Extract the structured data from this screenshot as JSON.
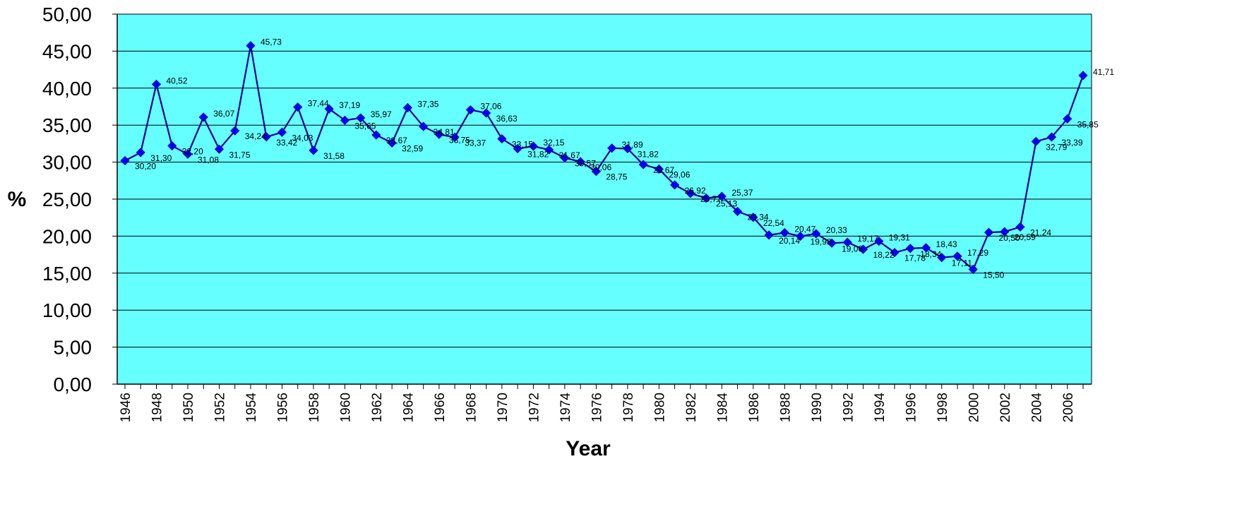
{
  "colors": {
    "plot_background": "#66ffff",
    "series_line": "#000099",
    "marker": "#0000ff",
    "gridline": "#000000"
  },
  "chart_data": {
    "type": "line",
    "title": "",
    "xlabel": "Year",
    "ylabel": "%",
    "ylim": [
      0,
      50
    ],
    "ytick_labels": [
      "0,00",
      "5,00",
      "10,00",
      "15,00",
      "20,00",
      "25,00",
      "30,00",
      "35,00",
      "40,00",
      "45,00",
      "50,00"
    ],
    "xtick_labels": [
      "1946",
      "1948",
      "1950",
      "1952",
      "1954",
      "1956",
      "1958",
      "1960",
      "1962",
      "1964",
      "1966",
      "1968",
      "1970",
      "1972",
      "1974",
      "1976",
      "1978",
      "1980",
      "1982",
      "1984",
      "1986",
      "1988",
      "1990",
      "1992",
      "1994",
      "1996",
      "1998",
      "2000",
      "2002",
      "2004",
      "2006"
    ],
    "grid": true,
    "marker": "diamond",
    "x": [
      1946,
      1947,
      1948,
      1949,
      1950,
      1951,
      1952,
      1953,
      1954,
      1955,
      1956,
      1957,
      1958,
      1959,
      1960,
      1961,
      1962,
      1963,
      1964,
      1965,
      1966,
      1967,
      1968,
      1969,
      1970,
      1971,
      1972,
      1973,
      1974,
      1975,
      1976,
      1977,
      1978,
      1979,
      1980,
      1981,
      1982,
      1983,
      1984,
      1985,
      1986,
      1987,
      1988,
      1989,
      1990,
      1991,
      1992,
      1993,
      1994,
      1995,
      1996,
      1997,
      1998,
      1999,
      2000,
      2001,
      2002,
      2003,
      2004,
      2005,
      2006,
      2007
    ],
    "values": [
      30.2,
      31.3,
      40.52,
      32.2,
      31.08,
      36.07,
      31.75,
      34.24,
      45.73,
      33.42,
      34.03,
      37.44,
      31.58,
      37.19,
      35.65,
      35.97,
      33.67,
      32.59,
      37.35,
      34.81,
      33.75,
      33.37,
      37.06,
      36.63,
      33.15,
      31.82,
      32.15,
      31.67,
      30.57,
      30.06,
      28.75,
      31.89,
      31.82,
      29.67,
      29.06,
      26.92,
      25.77,
      25.13,
      25.37,
      23.34,
      22.54,
      20.14,
      20.47,
      19.98,
      20.33,
      19.06,
      19.17,
      18.22,
      19.31,
      17.78,
      18.34,
      18.43,
      17.11,
      17.29,
      15.5,
      20.5,
      20.59,
      21.24,
      32.79,
      33.39,
      35.85,
      41.71
    ],
    "data_labels": [
      "30,20",
      "31,30",
      "40,52",
      "32,20",
      "31,08",
      "36,07",
      "31,75",
      "34,24",
      "45,73",
      "33,42",
      "34,03",
      "37,44",
      "31,58",
      "37,19",
      "35,65",
      "35,97",
      "33,67",
      "32,59",
      "37,35",
      "34,81",
      "33,75",
      "33,37",
      "37,06",
      "36,63",
      "33,15",
      "31,82",
      "32,15",
      "31,67",
      "30,57",
      "30,06",
      "28,75",
      "31,89",
      "31,82",
      "29,67",
      "29,06",
      "26,92",
      "25,77",
      "25,13",
      "25,37",
      "23,34",
      "22,54",
      "20,14",
      "20,47",
      "19,98",
      "20,33",
      "19,06",
      "19,17",
      "18,22",
      "19,31",
      "17,78",
      "18,34",
      "18,43",
      "17,11",
      "17,29",
      "15,50",
      "20,50",
      "20,59",
      "21,24",
      "32,79",
      "33,39",
      "35,85",
      "41,71"
    ]
  }
}
